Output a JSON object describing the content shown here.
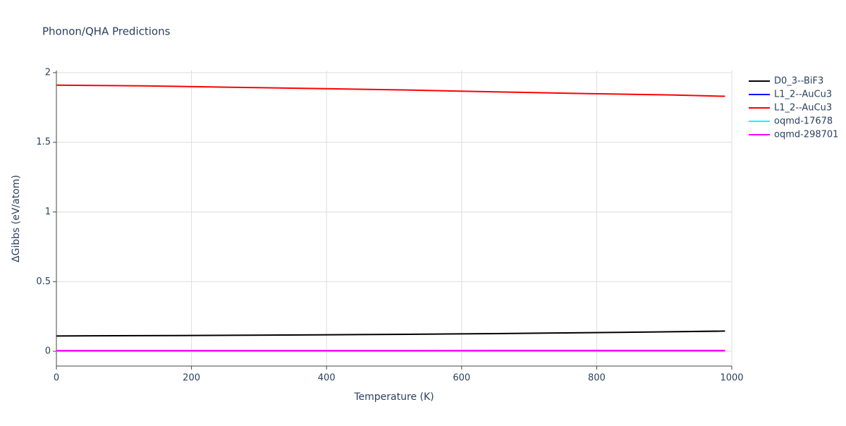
{
  "chart_data": {
    "type": "line",
    "title": "Phonon/QHA Predictions",
    "x_label": "Temperature (K)",
    "y_label": "ΔGibbs (eV/atom)",
    "x": [
      0,
      130,
      260,
      390,
      520,
      650,
      780,
      910,
      990
    ],
    "series": [
      {
        "name": "D0_3--BiF3",
        "color": "#000000",
        "values": [
          0.11,
          0.112,
          0.115,
          0.118,
          0.122,
          0.127,
          0.133,
          0.14,
          0.145
        ]
      },
      {
        "name": "L1_2--AuCu3",
        "color": "#0000ff",
        "values": [
          0.003,
          0.003,
          0.003,
          0.003,
          0.003,
          0.004,
          0.004,
          0.004,
          0.004
        ]
      },
      {
        "name": "L1_2--AuCu3",
        "color": "#ff0000",
        "values": [
          1.91,
          1.905,
          1.895,
          1.885,
          1.875,
          1.862,
          1.85,
          1.84,
          1.83
        ]
      },
      {
        "name": "oqmd-17678",
        "color": "#00ffff",
        "values": [
          0.0,
          0.0,
          0.0,
          0.0,
          0.0,
          0.0,
          0.0,
          0.0,
          0.0
        ]
      },
      {
        "name": "oqmd-298701",
        "color": "#ff00ff",
        "values": [
          0.005,
          0.005,
          0.005,
          0.005,
          0.005,
          0.006,
          0.006,
          0.006,
          0.006
        ]
      }
    ],
    "xlim": [
      0,
      1000
    ],
    "xticks": [
      0,
      200,
      400,
      600,
      800,
      1000
    ],
    "ylim": [
      -0.106,
      2.015
    ],
    "yticks": [
      0,
      0.5,
      1,
      1.5,
      2
    ],
    "grid": true
  }
}
